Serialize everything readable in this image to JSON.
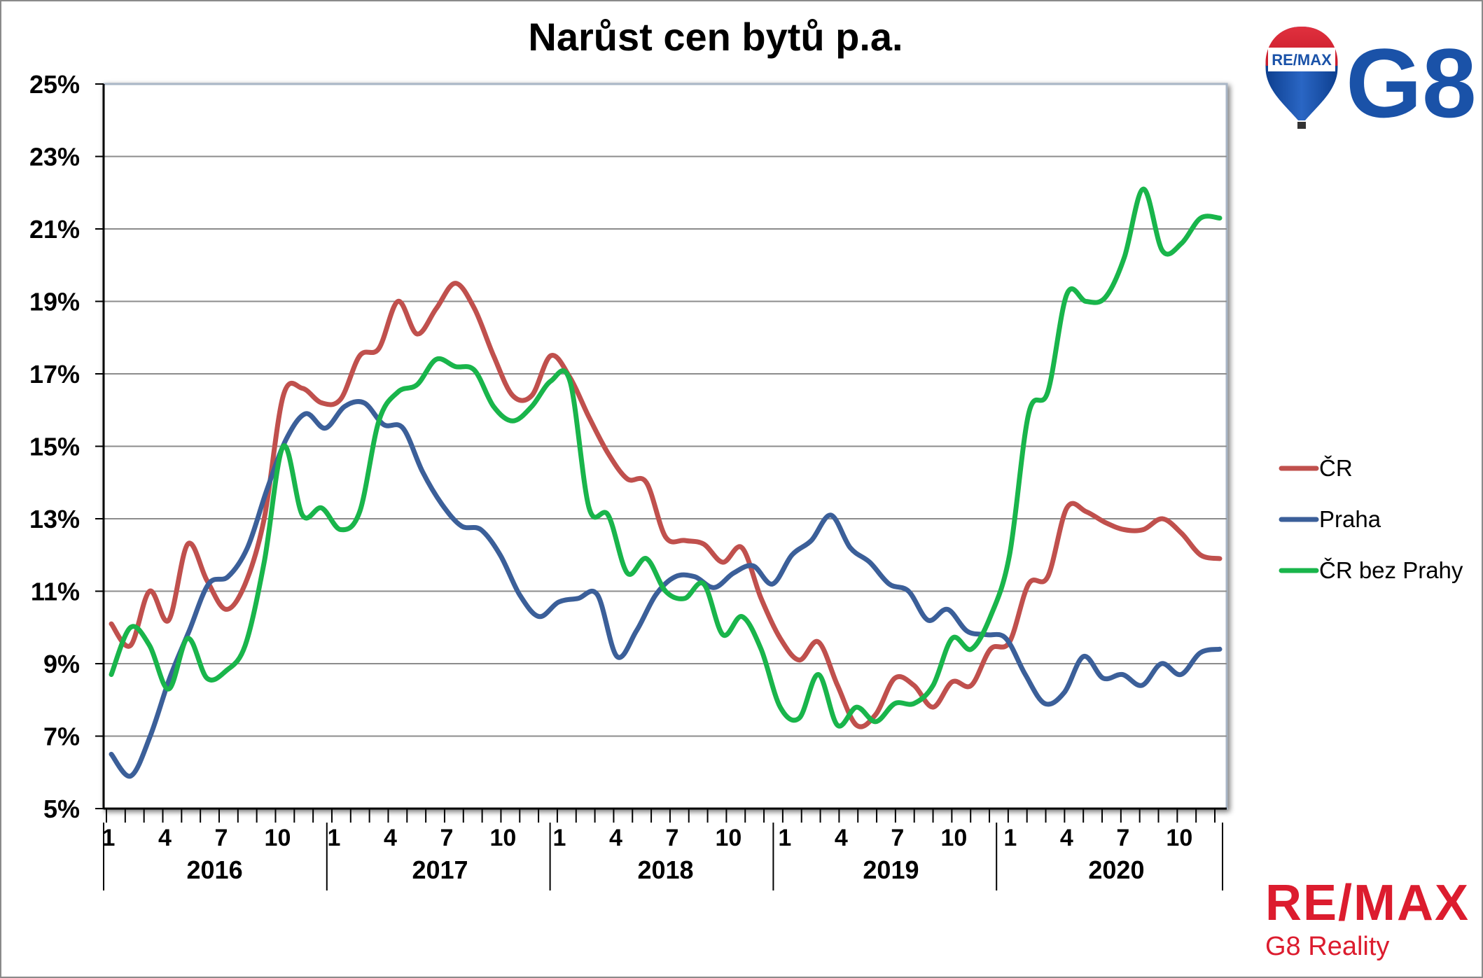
{
  "chart_data": {
    "type": "line",
    "title": "Narůst cen bytů p.a.",
    "ylim": [
      5,
      25
    ],
    "yticks": [
      "25%",
      "23%",
      "21%",
      "19%",
      "17%",
      "15%",
      "13%",
      "11%",
      "9%",
      "7%",
      "5%"
    ],
    "month_ticks": [
      "1",
      "4",
      "7",
      "10"
    ],
    "years": [
      "2016",
      "2017",
      "2018",
      "2019",
      "2020"
    ],
    "grid": true,
    "legend_position": "right",
    "series": [
      {
        "name": "ČR",
        "color": "#c0504d",
        "values": [
          10.1,
          9.5,
          11.0,
          10.2,
          12.3,
          11.3,
          10.5,
          11.2,
          13.0,
          16.4,
          16.6,
          16.2,
          16.3,
          17.5,
          17.7,
          19.0,
          18.1,
          18.8,
          19.5,
          18.8,
          17.5,
          16.4,
          16.4,
          17.5,
          16.9,
          15.8,
          14.8,
          14.1,
          14.0,
          12.5,
          12.4,
          12.3,
          11.8,
          12.2,
          10.8,
          9.7,
          9.1,
          9.6,
          8.4,
          7.3,
          7.6,
          8.6,
          8.4,
          7.8,
          8.5,
          8.4,
          9.4,
          9.6,
          11.2,
          11.4,
          13.3,
          13.2,
          12.9,
          12.7,
          12.7,
          13.0,
          12.6,
          12.0,
          11.9
        ]
      },
      {
        "name": "Praha",
        "color": "#3b5f99",
        "values": [
          6.5,
          5.9,
          7.0,
          8.6,
          9.9,
          11.2,
          11.4,
          12.2,
          13.8,
          15.2,
          15.9,
          15.5,
          16.1,
          16.2,
          15.6,
          15.5,
          14.3,
          13.4,
          12.8,
          12.7,
          12.0,
          10.9,
          10.3,
          10.7,
          10.8,
          10.9,
          9.2,
          9.9,
          10.9,
          11.4,
          11.4,
          11.1,
          11.5,
          11.7,
          11.2,
          12.0,
          12.4,
          13.1,
          12.2,
          11.8,
          11.2,
          11.0,
          10.2,
          10.5,
          9.9,
          9.8,
          9.7,
          8.7,
          7.9,
          8.2,
          9.2,
          8.6,
          8.7,
          8.4,
          9.0,
          8.7,
          9.3,
          9.4
        ]
      },
      {
        "name": "ČR bez Prahy",
        "color": "#19b54b",
        "values": [
          8.7,
          10.0,
          9.5,
          8.3,
          9.7,
          8.6,
          8.8,
          9.5,
          11.8,
          15.0,
          13.1,
          13.3,
          12.7,
          13.2,
          15.7,
          16.5,
          16.7,
          17.4,
          17.2,
          17.1,
          16.1,
          15.7,
          16.1,
          16.8,
          16.8,
          13.3,
          13.1,
          11.5,
          11.9,
          11.0,
          10.8,
          11.2,
          9.8,
          10.3,
          9.4,
          7.8,
          7.5,
          8.7,
          7.3,
          7.8,
          7.4,
          7.9,
          7.9,
          8.4,
          9.7,
          9.4,
          10.3,
          12.0,
          15.9,
          16.5,
          19.2,
          19.0,
          19.1,
          20.2,
          22.1,
          20.4,
          20.6,
          21.3,
          21.3
        ]
      }
    ]
  },
  "branding": {
    "balloon_text": "RE/MAX",
    "g8_logo": "G8",
    "footer_brand": "RE/MAX",
    "footer_sub": "G8 Reality"
  }
}
